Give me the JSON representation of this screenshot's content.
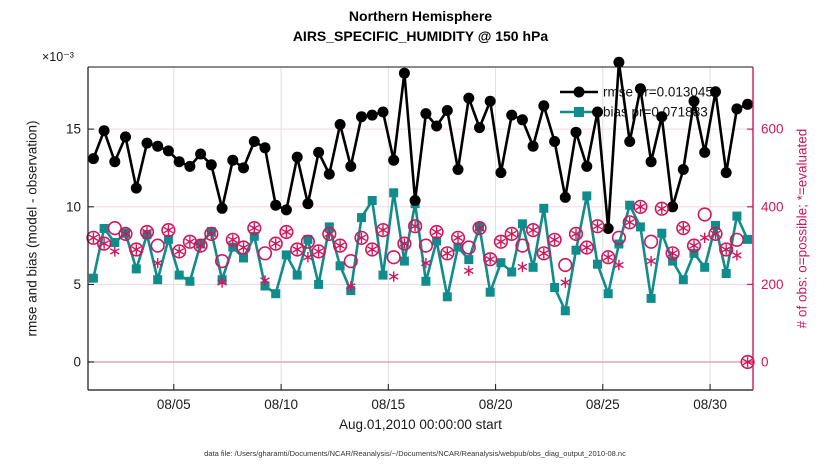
{
  "footer": "data file: /Users/gharamti/Documents/NCAR/Reanalysis/~/Documents/NCAR/Reanalysis/webpub/obs_diag_output_2010-08.nc",
  "chart_data": {
    "type": "line",
    "title": "Northern Hemisphere",
    "subtitle": "AIRS_SPECIFIC_HUMIDITY @ 150 hPa",
    "xlabel": "Aug.01,2010 00:00:00 start",
    "ylabel_left": "rmse and bias (model - observation)",
    "ylabel_left_multiplier": "×10⁻³",
    "ylabel_right": "# of obs: o=possible; *=evaluated",
    "x_tick_labels": [
      "08/05",
      "08/10",
      "08/15",
      "08/20",
      "08/25",
      "08/30"
    ],
    "x_tick_days": [
      5,
      10,
      15,
      20,
      25,
      30
    ],
    "x_range_days": [
      1,
      32
    ],
    "left_ticks": [
      0,
      5,
      10,
      15
    ],
    "ylim_left": [
      -1.8,
      19.0
    ],
    "right_ticks": [
      0,
      200,
      400,
      600
    ],
    "ylim_right": [
      -72,
      760
    ],
    "grid": true,
    "legend_position": "top-right-inside",
    "legend": [
      {
        "label": "rmse pr=0.013045",
        "series": "rmse"
      },
      {
        "label": "bias pr=0.071883",
        "series": "bias"
      }
    ],
    "colors": {
      "rmse": "#000000",
      "bias": "#108c8c",
      "obs": "#d0165c",
      "grid_v": "#dcdcdc",
      "grid_h": "#f5d0dc",
      "zero_line": "#e8a2bb",
      "spine": "#151515"
    },
    "x_days": [
      1.25,
      1.75,
      2.25,
      2.75,
      3.25,
      3.75,
      4.25,
      4.75,
      5.25,
      5.75,
      6.25,
      6.75,
      7.25,
      7.75,
      8.25,
      8.75,
      9.25,
      9.75,
      10.25,
      10.75,
      11.25,
      11.75,
      12.25,
      12.75,
      13.25,
      13.75,
      14.25,
      14.75,
      15.25,
      15.75,
      16.25,
      16.75,
      17.25,
      17.75,
      18.25,
      18.75,
      19.25,
      19.75,
      20.25,
      20.75,
      21.25,
      21.75,
      22.25,
      22.75,
      23.25,
      23.75,
      24.25,
      24.75,
      25.25,
      25.75,
      26.25,
      26.75,
      27.25,
      27.75,
      28.25,
      28.75,
      29.25,
      29.75,
      30.25,
      30.75,
      31.25,
      31.75
    ],
    "series": [
      {
        "name": "rmse",
        "axis": "left",
        "marker": "filled-circle",
        "units": "x10^-3",
        "values": [
          13.1,
          14.9,
          12.9,
          14.5,
          11.2,
          14.1,
          13.9,
          13.6,
          12.9,
          12.6,
          13.4,
          12.7,
          9.9,
          13.0,
          12.5,
          14.2,
          13.8,
          10.1,
          9.8,
          13.2,
          10.2,
          13.5,
          12.1,
          15.3,
          12.6,
          15.8,
          15.9,
          16.1,
          13.0,
          18.6,
          10.4,
          16.0,
          15.2,
          16.2,
          12.4,
          17.0,
          15.1,
          16.8,
          12.2,
          15.9,
          15.6,
          13.9,
          16.5,
          14.2,
          10.6,
          14.8,
          12.6,
          16.1,
          8.6,
          19.3,
          14.2,
          17.6,
          12.9,
          15.8,
          10.0,
          12.4,
          16.8,
          13.5,
          17.4,
          12.2,
          16.3,
          16.6
        ]
      },
      {
        "name": "bias",
        "axis": "left",
        "marker": "filled-square",
        "units": "x10^-3",
        "values": [
          5.4,
          8.6,
          7.7,
          8.3,
          6.0,
          8.2,
          5.3,
          7.9,
          5.6,
          5.2,
          7.6,
          8.4,
          5.3,
          7.4,
          6.7,
          8.1,
          4.9,
          4.4,
          6.9,
          5.6,
          7.9,
          5.0,
          8.7,
          6.2,
          4.6,
          9.3,
          10.4,
          5.6,
          10.9,
          6.5,
          10.2,
          5.2,
          7.8,
          4.2,
          7.4,
          6.6,
          8.7,
          4.5,
          6.4,
          5.8,
          8.9,
          6.1,
          9.9,
          4.8,
          3.3,
          7.2,
          10.7,
          6.3,
          4.4,
          7.6,
          10.1,
          8.7,
          4.1,
          8.3,
          6.5,
          5.3,
          7.0,
          6.1,
          8.8,
          5.7,
          9.4,
          7.9
        ]
      },
      {
        "name": "obs_possible",
        "axis": "right",
        "marker": "open-circle",
        "values": [
          320,
          305,
          345,
          330,
          290,
          335,
          300,
          340,
          285,
          310,
          300,
          330,
          260,
          315,
          295,
          345,
          280,
          305,
          335,
          290,
          310,
          285,
          330,
          300,
          260,
          320,
          290,
          340,
          270,
          305,
          350,
          300,
          335,
          280,
          320,
          295,
          345,
          265,
          310,
          330,
          300,
          340,
          280,
          315,
          250,
          330,
          295,
          350,
          270,
          320,
          360,
          400,
          310,
          395,
          280,
          345,
          300,
          380,
          330,
          290,
          315,
          0
        ]
      },
      {
        "name": "obs_evaluated",
        "axis": "right",
        "marker": "asterisk",
        "values": [
          320,
          305,
          285,
          330,
          290,
          335,
          255,
          340,
          285,
          310,
          300,
          330,
          205,
          315,
          295,
          345,
          210,
          305,
          335,
          290,
          270,
          285,
          330,
          300,
          195,
          320,
          290,
          340,
          220,
          305,
          350,
          255,
          335,
          280,
          320,
          235,
          345,
          265,
          310,
          330,
          245,
          340,
          280,
          315,
          205,
          330,
          295,
          350,
          270,
          250,
          360,
          400,
          260,
          395,
          280,
          345,
          300,
          320,
          330,
          290,
          275,
          0
        ]
      }
    ]
  }
}
